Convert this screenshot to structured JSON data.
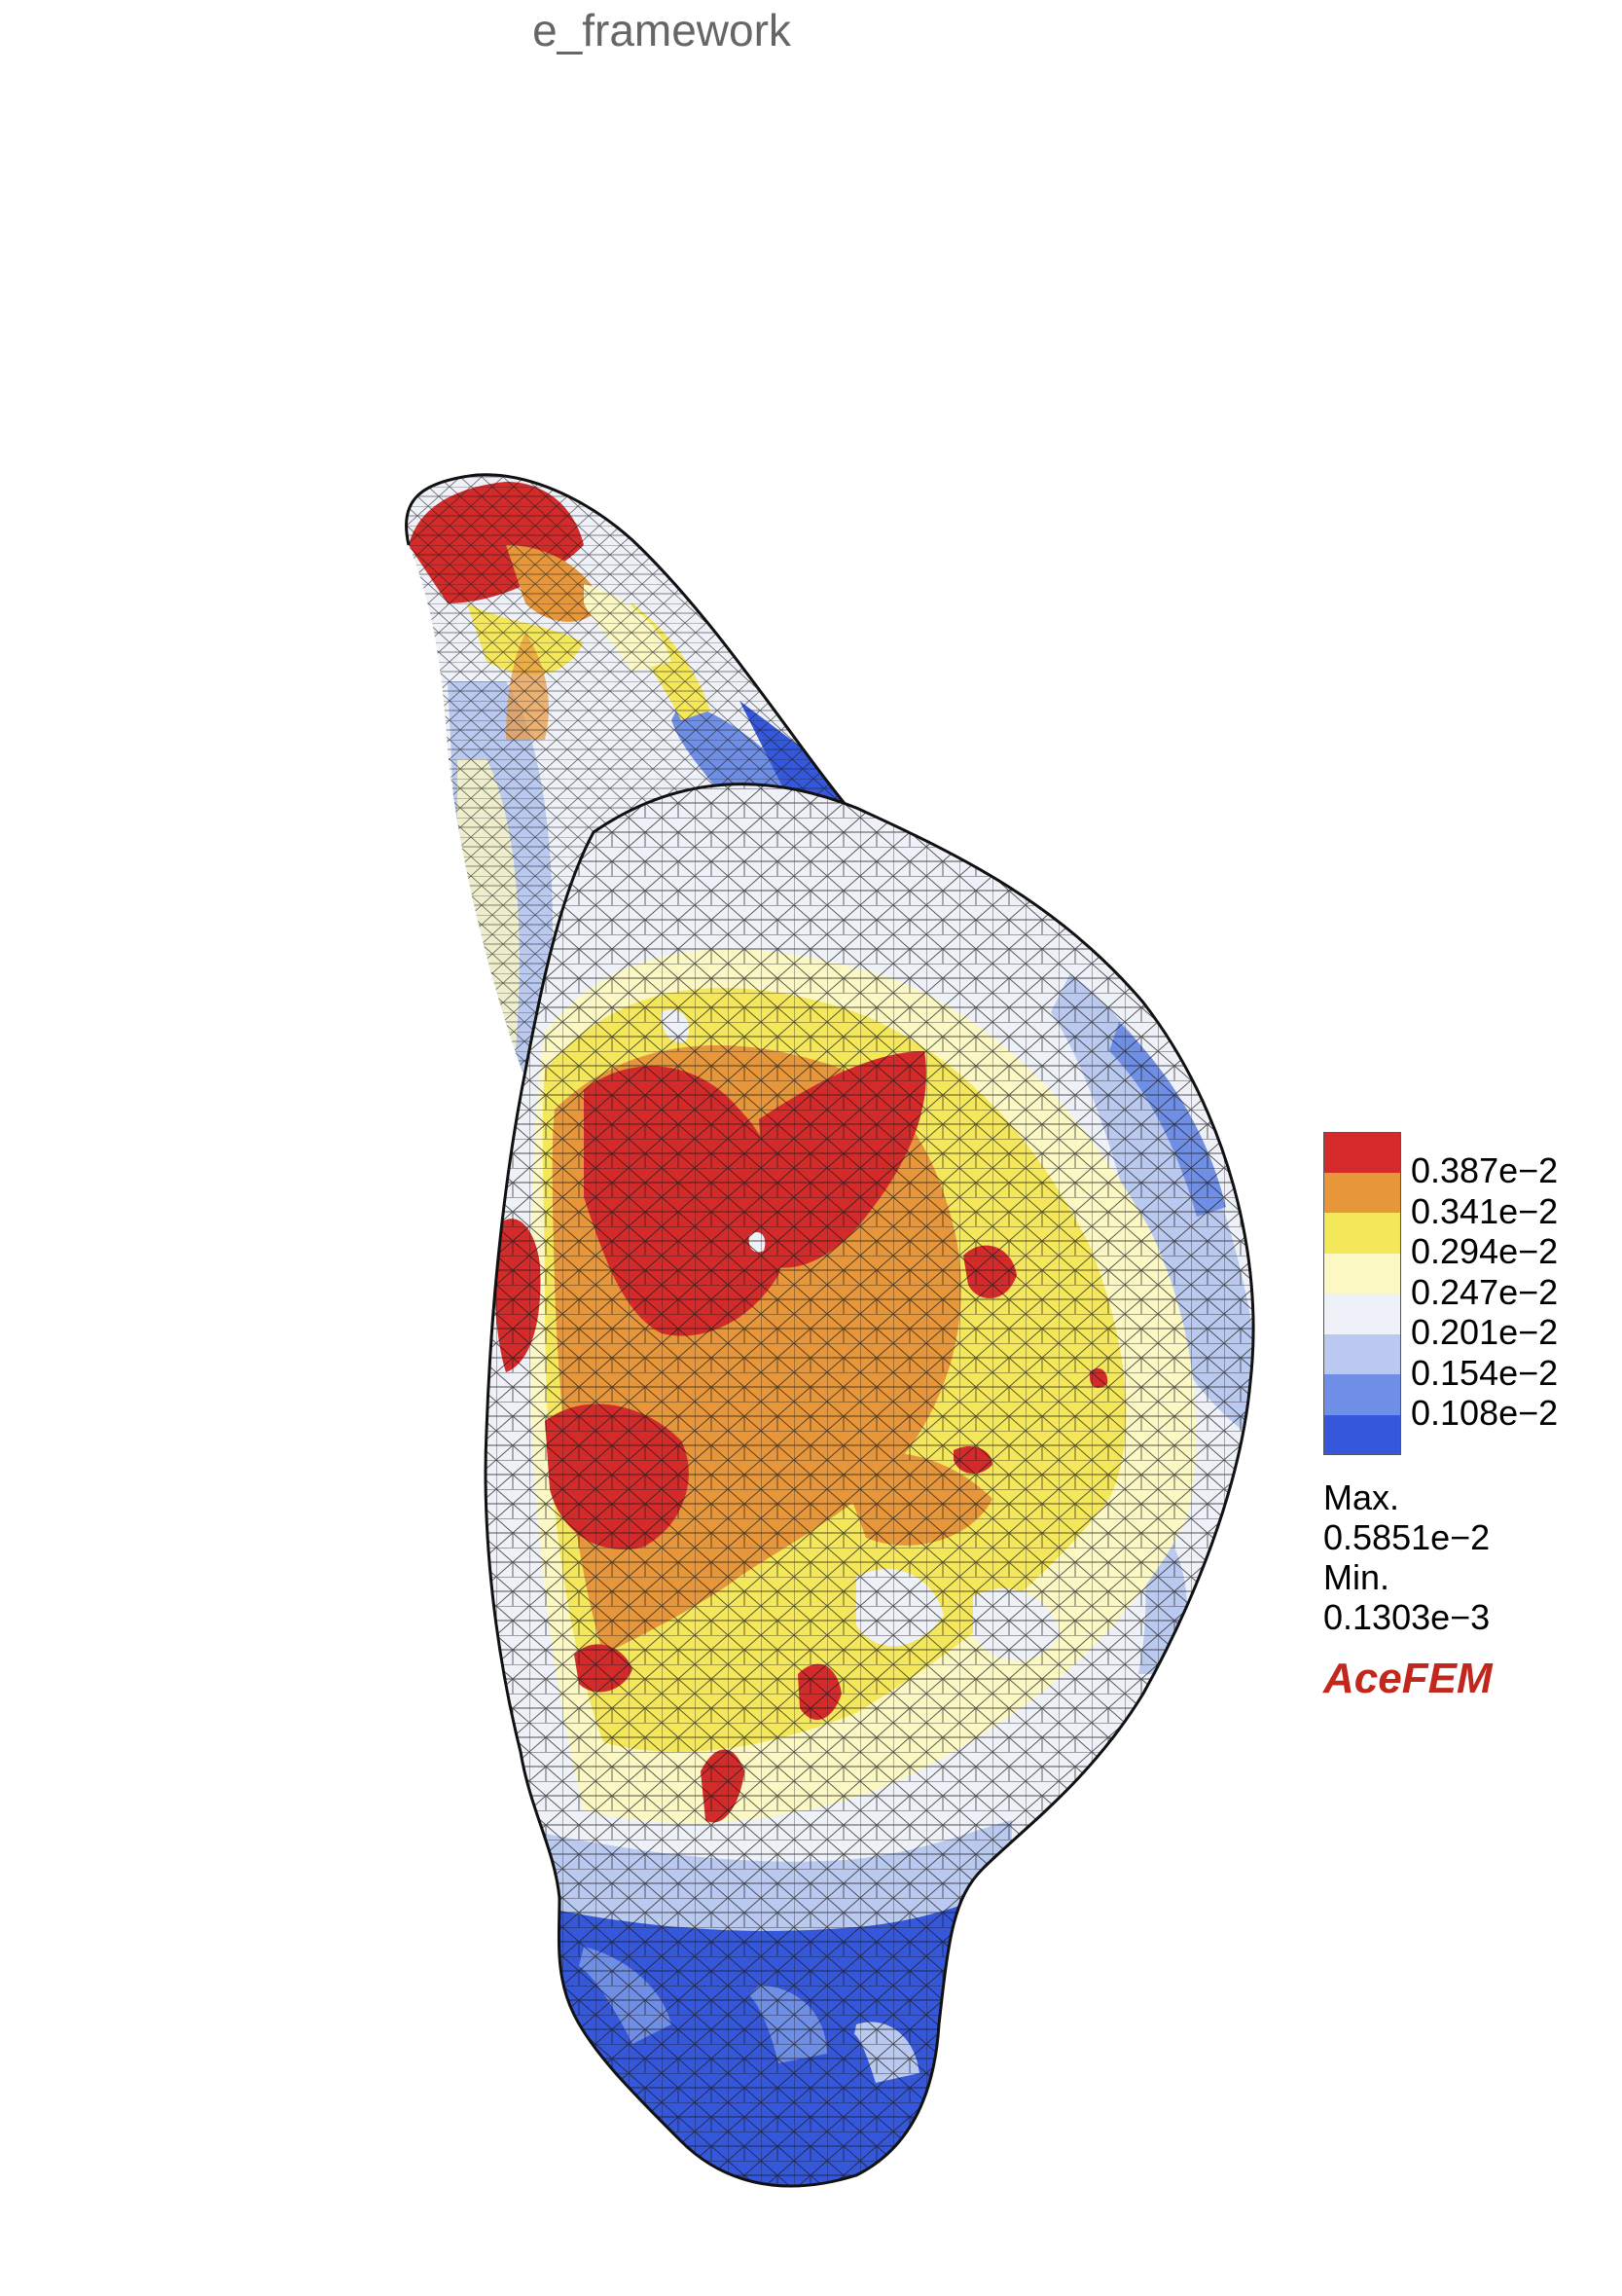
{
  "title": "e_framework",
  "legend": {
    "bands": [
      {
        "label": "0.387e−2",
        "color": "#d42a2a"
      },
      {
        "label": "0.341e−2",
        "color": "#e8963a"
      },
      {
        "label": "0.294e−2",
        "color": "#f5e75a"
      },
      {
        "label": "0.247e−2",
        "color": "#fbf8c4"
      },
      {
        "label": "0.201e−2",
        "color": "#eef1f8"
      },
      {
        "label": "0.154e−2",
        "color": "#b9c9ef"
      },
      {
        "label": "0.108e−2",
        "color": "#6f8ee6"
      },
      {
        "label": "",
        "color": "#3457db"
      }
    ]
  },
  "stats": {
    "max_label": "Max.",
    "max_value": "0.5851e−2",
    "min_label": "Min.",
    "min_value": "0.1303e−3"
  },
  "brand": "AceFEM",
  "colors": {
    "red": "#d42a2a",
    "orange": "#e8963a",
    "yellow": "#f5e75a",
    "pale_yellow": "#fbf8c4",
    "white": "#eef1f8",
    "light_blue": "#b9c9ef",
    "mid_blue": "#6f8ee6",
    "blue": "#3457db",
    "brand": "#c1271c",
    "mesh": "#1a1a1a"
  }
}
